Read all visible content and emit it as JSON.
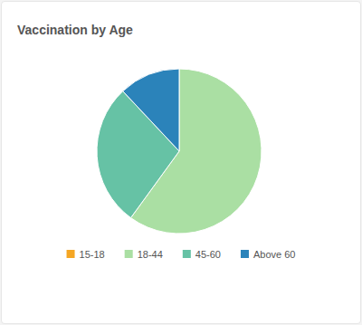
{
  "chart_data": {
    "type": "pie",
    "title": "Vaccination by Age",
    "categories": [
      "15-18",
      "18-44",
      "45-60",
      "Above 60"
    ],
    "values": [
      0,
      60,
      28,
      12
    ],
    "colors": [
      "#f5a623",
      "#aadfa3",
      "#66c2a5",
      "#2b83ba"
    ],
    "legend": "bottom"
  }
}
